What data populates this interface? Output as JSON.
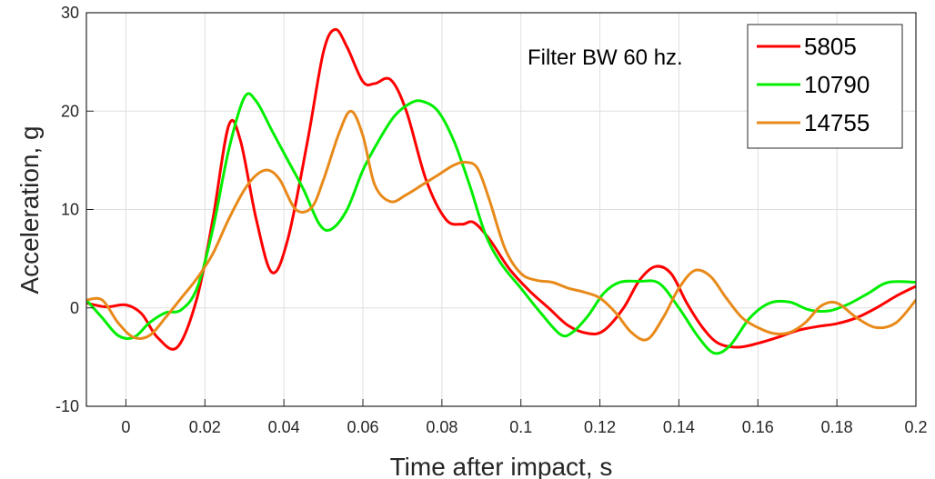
{
  "chart_data": {
    "type": "line",
    "title": "",
    "xlabel": "Time after impact, s",
    "ylabel": "Acceleration, g",
    "xlim": [
      -0.01,
      0.2
    ],
    "ylim": [
      -10,
      30
    ],
    "xticks": [
      0,
      0.02,
      0.04,
      0.06,
      0.08,
      0.1,
      0.12,
      0.14,
      0.16,
      0.18,
      0.2
    ],
    "xtick_labels": [
      "0",
      "0.02",
      "0.04",
      "0.06",
      "0.08",
      "0.1",
      "0.12",
      "0.14",
      "0.16",
      "0.18",
      "0.2"
    ],
    "yticks": [
      -10,
      0,
      10,
      20,
      30
    ],
    "ytick_labels": [
      "-10",
      "0",
      "10",
      "20",
      "30"
    ],
    "grid": true,
    "legend_position": "top-right",
    "annotation": "Filter BW 60 hz.",
    "series": [
      {
        "name": "5805",
        "color": "#ff0000",
        "x": [
          -0.01,
          -0.005,
          0,
          0.004,
          0.008,
          0.013,
          0.018,
          0.022,
          0.026,
          0.029,
          0.033,
          0.037,
          0.041,
          0.046,
          0.05,
          0.053,
          0.056,
          0.06,
          0.063,
          0.067,
          0.071,
          0.076,
          0.081,
          0.085,
          0.088,
          0.092,
          0.097,
          0.102,
          0.107,
          0.112,
          0.117,
          0.121,
          0.126,
          0.13,
          0.134,
          0.138,
          0.142,
          0.146,
          0.15,
          0.155,
          0.16,
          0.165,
          0.17,
          0.175,
          0.18,
          0.185,
          0.19,
          0.195,
          0.2
        ],
        "y": [
          0.5,
          0.1,
          0.3,
          -0.6,
          -3.0,
          -4.0,
          1.0,
          9.0,
          18.5,
          17.0,
          9.0,
          3.6,
          7.0,
          17.0,
          26.0,
          28.3,
          26.5,
          23.0,
          22.8,
          23.2,
          20.0,
          13.0,
          9.0,
          8.5,
          8.7,
          7.0,
          4.0,
          1.8,
          0.0,
          -1.8,
          -2.6,
          -2.3,
          0.0,
          2.8,
          4.2,
          3.5,
          0.5,
          -2.0,
          -3.6,
          -4.0,
          -3.6,
          -3.0,
          -2.3,
          -1.9,
          -1.6,
          -1.0,
          0.0,
          1.2,
          2.2
        ]
      },
      {
        "name": "10790",
        "color": "#00ee00",
        "x": [
          -0.01,
          -0.006,
          -0.002,
          0.002,
          0.006,
          0.01,
          0.014,
          0.018,
          0.022,
          0.026,
          0.03,
          0.033,
          0.037,
          0.041,
          0.045,
          0.049,
          0.052,
          0.056,
          0.06,
          0.064,
          0.068,
          0.072,
          0.075,
          0.079,
          0.083,
          0.087,
          0.091,
          0.095,
          0.1,
          0.105,
          0.11,
          0.113,
          0.117,
          0.121,
          0.125,
          0.13,
          0.135,
          0.14,
          0.145,
          0.149,
          0.153,
          0.158,
          0.163,
          0.168,
          0.173,
          0.178,
          0.183,
          0.188,
          0.193,
          0.2
        ],
        "y": [
          0.8,
          -1.0,
          -2.8,
          -3.0,
          -1.5,
          -0.5,
          -0.2,
          2.0,
          8.0,
          16.0,
          21.4,
          21.0,
          18.0,
          15.0,
          12.0,
          8.5,
          8.0,
          10.0,
          14.0,
          17.0,
          19.5,
          20.8,
          21.0,
          20.0,
          17.0,
          12.5,
          7.5,
          4.5,
          2.0,
          -0.5,
          -2.7,
          -2.5,
          -0.8,
          1.5,
          2.6,
          2.7,
          2.5,
          0.0,
          -3.0,
          -4.6,
          -3.8,
          -1.0,
          0.5,
          0.6,
          -0.2,
          -0.3,
          0.4,
          1.5,
          2.6,
          2.6
        ]
      },
      {
        "name": "14755",
        "color": "#e88a1a",
        "x": [
          -0.01,
          -0.006,
          -0.002,
          0.002,
          0.006,
          0.01,
          0.014,
          0.018,
          0.022,
          0.026,
          0.03,
          0.033,
          0.036,
          0.039,
          0.043,
          0.047,
          0.05,
          0.054,
          0.057,
          0.06,
          0.063,
          0.067,
          0.071,
          0.075,
          0.079,
          0.083,
          0.086,
          0.089,
          0.092,
          0.096,
          0.1,
          0.104,
          0.108,
          0.112,
          0.116,
          0.12,
          0.124,
          0.128,
          0.132,
          0.136,
          0.14,
          0.144,
          0.148,
          0.152,
          0.156,
          0.16,
          0.164,
          0.168,
          0.172,
          0.176,
          0.18,
          0.185,
          0.19,
          0.195,
          0.2
        ],
        "y": [
          0.8,
          0.8,
          -1.5,
          -3.0,
          -2.8,
          -1.0,
          1.0,
          3.0,
          5.5,
          9.0,
          12.0,
          13.5,
          14.0,
          13.0,
          10.0,
          10.2,
          13.0,
          17.8,
          20.0,
          17.5,
          12.5,
          10.8,
          11.5,
          12.5,
          13.5,
          14.5,
          14.8,
          14.2,
          11.0,
          6.0,
          3.5,
          2.8,
          2.6,
          2.0,
          1.6,
          1.0,
          -0.5,
          -2.5,
          -3.2,
          -1.0,
          2.0,
          3.8,
          3.2,
          1.0,
          -1.0,
          -2.0,
          -2.6,
          -2.5,
          -1.5,
          0.2,
          0.5,
          -1.0,
          -2.0,
          -1.5,
          0.8
        ]
      }
    ]
  }
}
